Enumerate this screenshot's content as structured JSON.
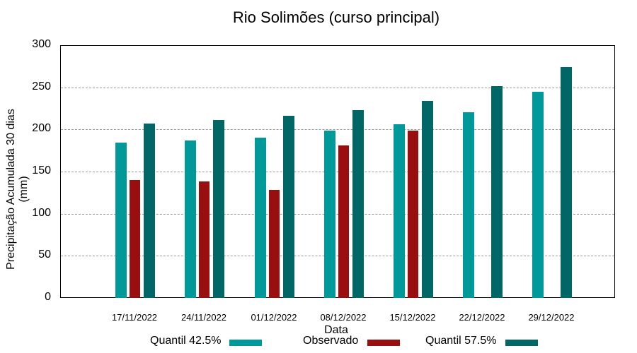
{
  "chart_data": {
    "type": "bar",
    "title": "Rio Solimões (curso principal)",
    "xlabel": "Data",
    "ylabel": "Precipitação Acumulada 30 dias (mm)",
    "ylim": [
      0,
      300
    ],
    "yticks": [
      "0",
      "50",
      "100",
      "150",
      "200",
      "250",
      "300"
    ],
    "grid": true,
    "legend_position": "bottom",
    "categories": [
      "17/11/2022",
      "24/11/2022",
      "01/12/2022",
      "08/12/2022",
      "15/12/2022",
      "22/12/2022",
      "29/12/2022"
    ],
    "series": [
      {
        "name": "Quantil 42.5%",
        "color": "#009999",
        "values": [
          184,
          187,
          190,
          199,
          206,
          220,
          245
        ]
      },
      {
        "name": "Observado",
        "color": "#990f0f",
        "values": [
          140,
          138,
          128,
          181,
          199,
          null,
          null
        ]
      },
      {
        "name": "Quantil 57.5%",
        "color": "#006666",
        "values": [
          207,
          211,
          216,
          223,
          234,
          251,
          274
        ]
      }
    ]
  }
}
